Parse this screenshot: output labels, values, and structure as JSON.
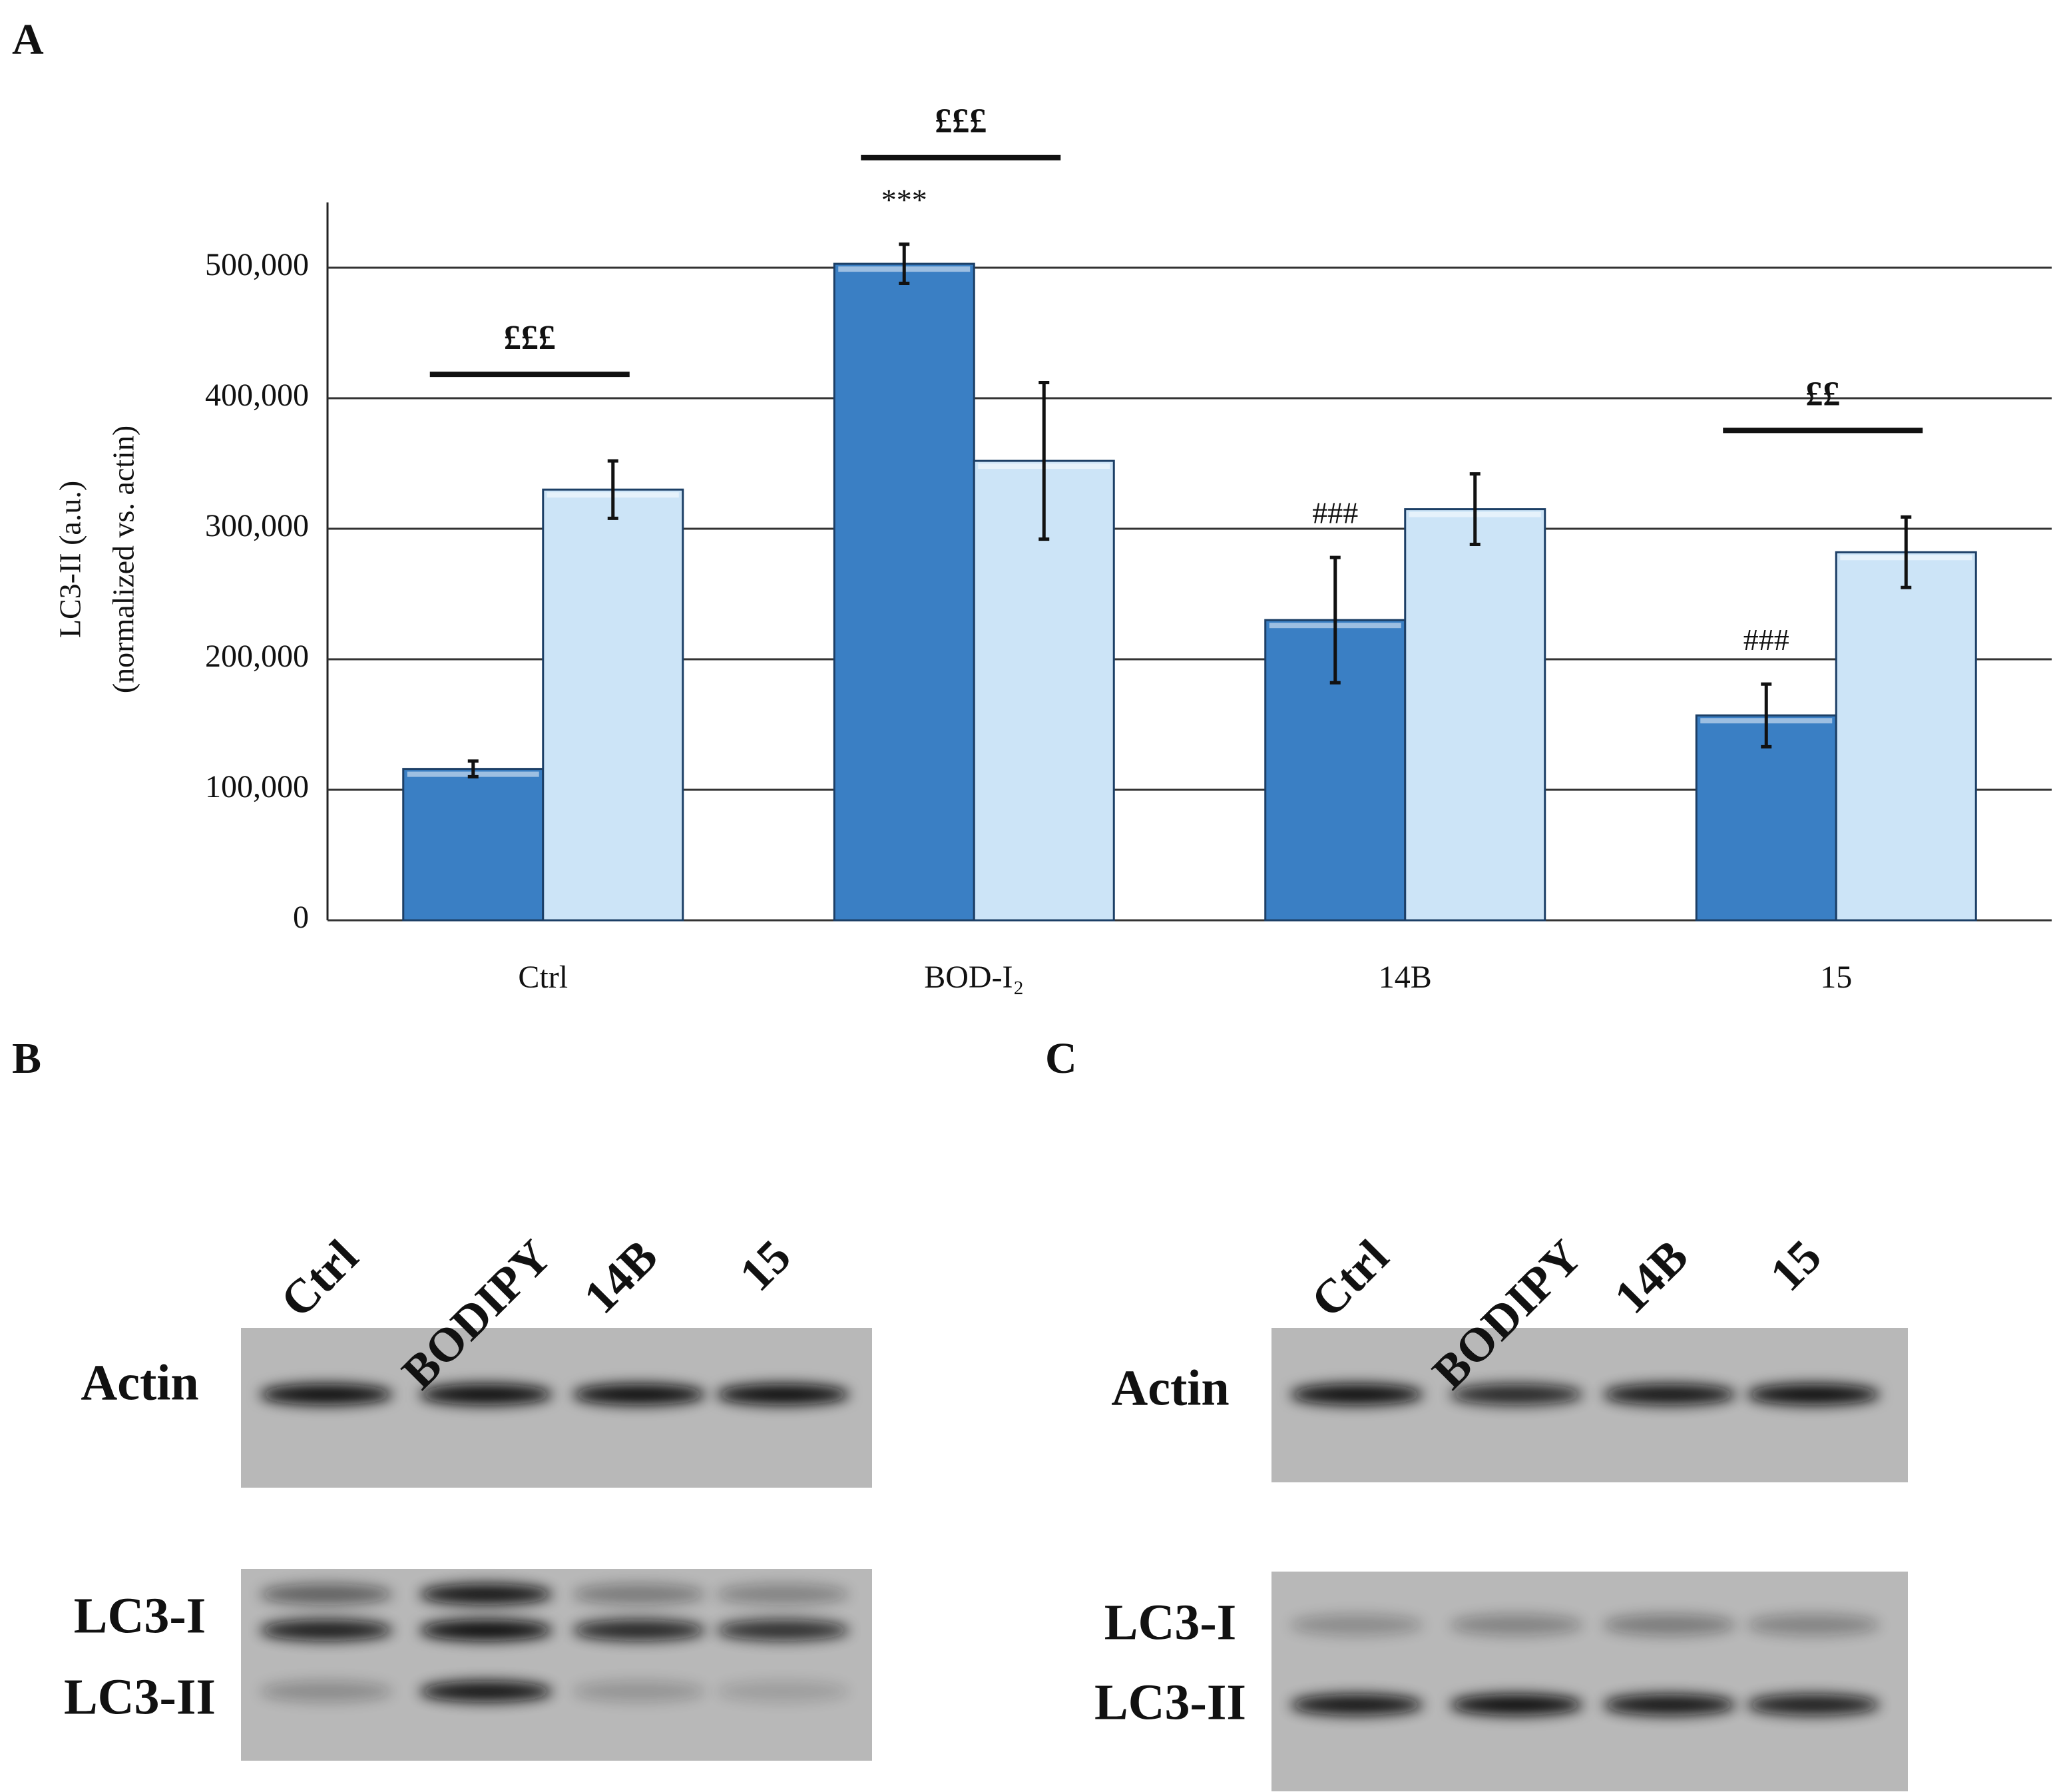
{
  "panel_labels": [
    "A",
    "B",
    "C"
  ],
  "chart_data": {
    "type": "bar",
    "ylabel": [
      "LC3-II (a.u.)",
      "(normalized  vs. actin)"
    ],
    "categories": [
      "Ctrl",
      "BOD-I₂",
      "14B",
      "15"
    ],
    "series": [
      {
        "color": "#3a7fc4",
        "values": [
          116000,
          503000,
          230000,
          157000
        ],
        "errors": [
          6000,
          15000,
          48000,
          24000
        ]
      },
      {
        "color": "#cce4f7",
        "values": [
          330000,
          352000,
          315000,
          282000
        ],
        "errors": [
          22000,
          60000,
          27000,
          27000
        ]
      }
    ],
    "ylim": [
      0,
      550000
    ],
    "yticks": [
      0,
      {
        "value": 100000,
        "label": "100,000"
      },
      {
        "value": 200000,
        "label": "200,000"
      },
      {
        "value": 300000,
        "label": "300,000"
      },
      {
        "value": 400000,
        "label": "400,000"
      },
      {
        "value": 500000,
        "label": "500,000"
      }
    ],
    "grid": true,
    "bar_marks": [
      {
        "text": "***",
        "category": "BOD-I₂"
      },
      {
        "text": "###",
        "category": "14B"
      },
      {
        "text": "###",
        "category": "15"
      }
    ],
    "brackets": [
      {
        "text": "£££",
        "category": "Ctrl"
      },
      {
        "text": "£££",
        "category": "BOD-I₂"
      },
      {
        "text": "££",
        "category": "15"
      }
    ]
  },
  "blots": [
    {
      "lanes": [
        "Ctrl",
        "BODIPY",
        "14B",
        "15"
      ],
      "rows": [
        "Actin",
        "LC3-I",
        "LC3-II"
      ]
    },
    {
      "lanes": [
        "Ctrl",
        "BODIPY",
        "14B",
        "15"
      ],
      "rows": [
        "Actin",
        "LC3-I",
        "LC3-II"
      ]
    }
  ]
}
